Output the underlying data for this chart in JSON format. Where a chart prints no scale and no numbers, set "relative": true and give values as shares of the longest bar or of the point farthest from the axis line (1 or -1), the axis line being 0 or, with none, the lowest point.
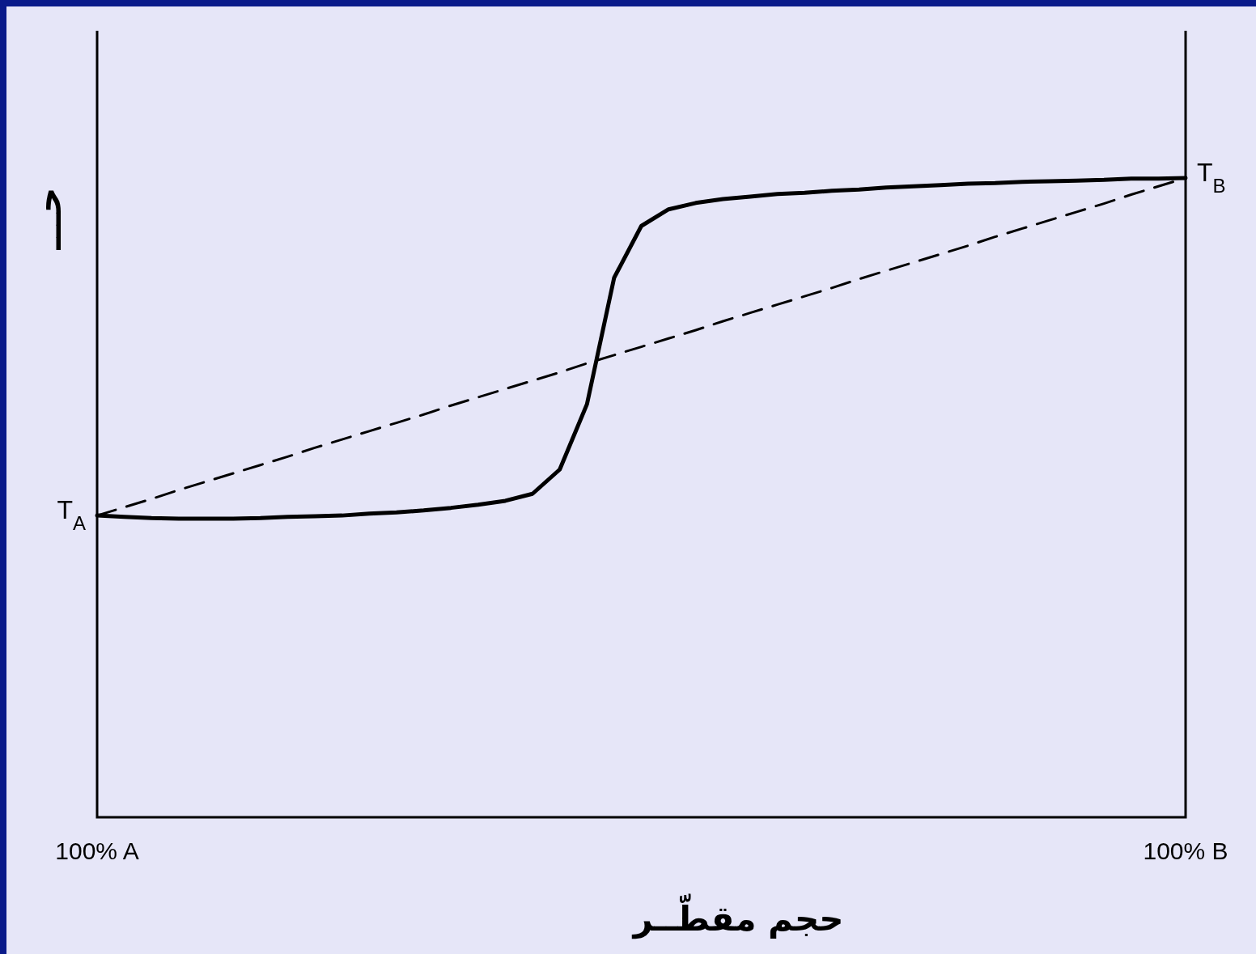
{
  "chart_data": {
    "type": "line",
    "relative": true,
    "xlabel": "حجم مقطّــر",
    "ylabel": "حـــ",
    "marker": "none",
    "categories": [
      "100% A",
      null,
      null,
      null,
      null,
      null,
      null,
      null,
      null,
      null,
      null,
      null,
      null,
      null,
      null,
      null,
      null,
      null,
      null,
      null,
      null,
      null,
      null,
      null,
      null,
      null,
      null,
      null,
      null,
      null,
      null,
      null,
      null,
      null,
      null,
      null,
      null,
      null,
      null,
      null,
      "100% B"
    ],
    "series": [
      {
        "color": "#000000",
        "line_style": "solid",
        "values": [
          0.472,
          0.47,
          0.468,
          0.467,
          0.467,
          0.467,
          0.468,
          0.47,
          0.471,
          0.472,
          0.475,
          0.477,
          0.48,
          0.484,
          0.489,
          0.495,
          0.506,
          0.544,
          0.646,
          0.844,
          0.925,
          0.951,
          0.961,
          0.967,
          0.971,
          0.975,
          0.977,
          0.98,
          0.982,
          0.985,
          0.987,
          0.989,
          0.991,
          0.992,
          0.994,
          0.995,
          0.996,
          0.997,
          0.999,
          0.999,
          1
        ]
      },
      {
        "color": "#000000",
        "line_style": "dashed",
        "values": [
          0.472,
          0.485,
          0.498,
          0.512,
          0.525,
          0.538,
          0.551,
          0.564,
          0.578,
          0.591,
          0.604,
          0.617,
          0.63,
          0.644,
          0.657,
          0.67,
          0.683,
          0.696,
          0.71,
          0.723,
          0.736,
          0.749,
          0.762,
          0.776,
          0.789,
          0.802,
          0.815,
          0.828,
          0.842,
          0.855,
          0.868,
          0.881,
          0.894,
          0.908,
          0.921,
          0.934,
          0.947,
          0.96,
          0.974,
          0.987,
          1
        ]
      }
    ],
    "annotations": [
      {
        "text": "T$_{A}$",
        "x": "100% A",
        "y": 0.472
      },
      {
        "text": "T$_{B}$",
        "x": "100% B",
        "y": 1
      }
    ]
  }
}
